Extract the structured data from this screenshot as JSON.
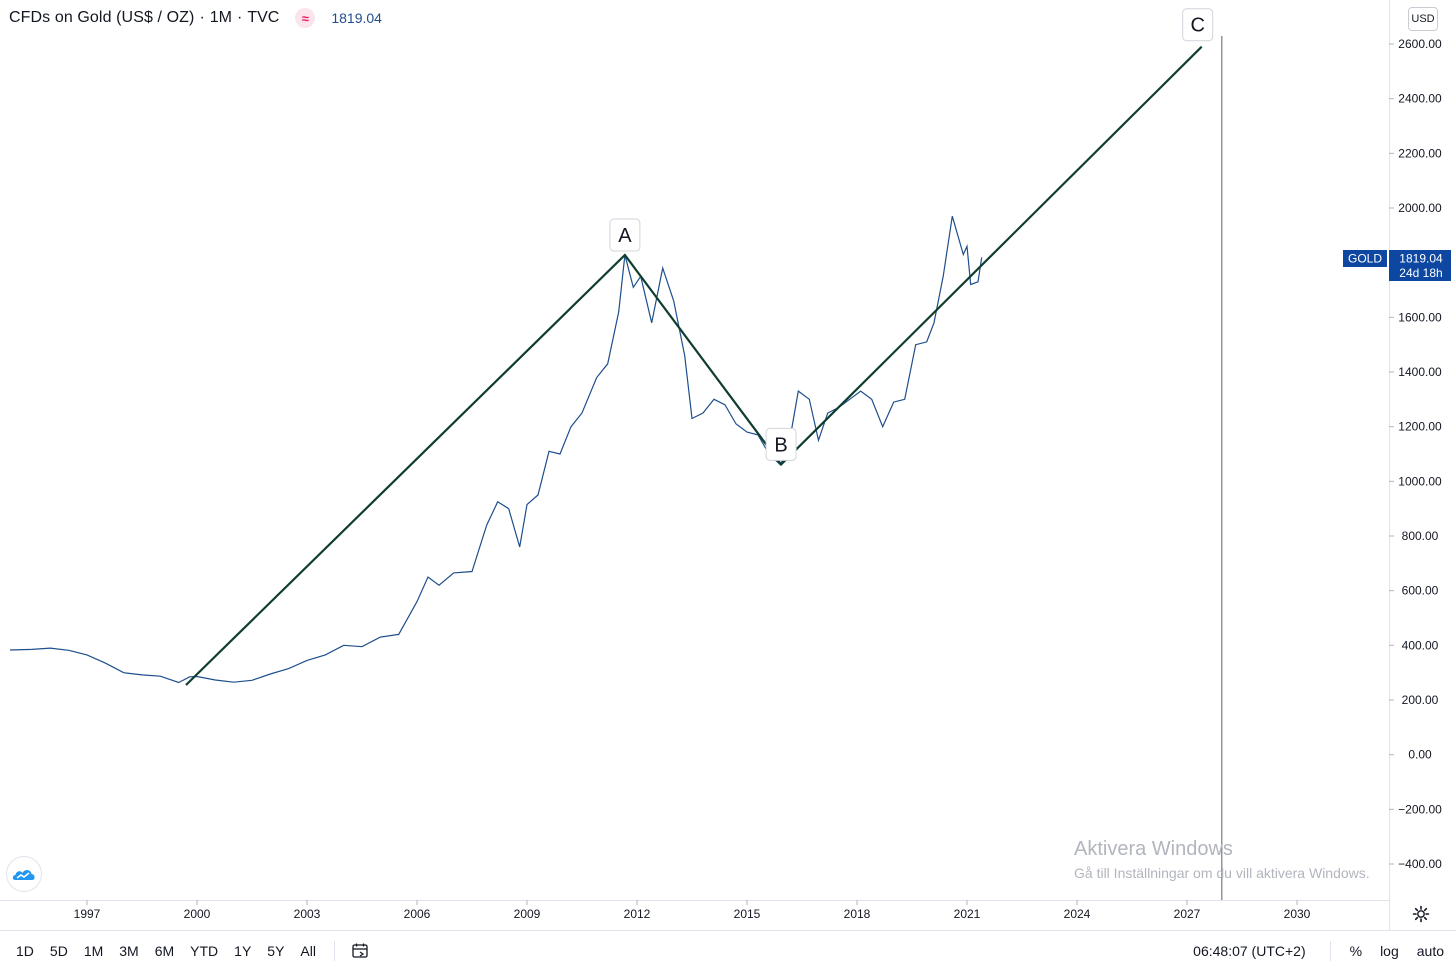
{
  "legend": {
    "symbol_title": "CFDs on Gold (US$ / OZ)",
    "interval": "1M",
    "exchange": "TVC",
    "market_icon": "wave-market-icon",
    "last_price": "1819.04"
  },
  "price_scale": {
    "currency": "USD"
  },
  "price_label": {
    "ticker": "GOLD",
    "value": "1819.04",
    "countdown": "24d 18h"
  },
  "watermark": {
    "title": "Aktivera Windows",
    "subtitle": "Gå till Inställningar om du vill aktivera Windows."
  },
  "bottom_bar": {
    "ranges": [
      "1D",
      "5D",
      "1M",
      "3M",
      "6M",
      "YTD",
      "1Y",
      "5Y",
      "All"
    ],
    "date_range_icon": "calendar-range-icon",
    "clock": "06:48:07 (UTC+2)",
    "percent_label": "%",
    "log_label": "log",
    "auto_label": "auto"
  },
  "colors": {
    "price_line": "#1f4e8c",
    "trend_line": "#0f3d2e",
    "label_bg": "#0d47a1",
    "grid": "#e0e3eb"
  },
  "chart_data": {
    "type": "line",
    "title": "CFDs on Gold (US$ / OZ)",
    "y_ticks": [
      "2600.00",
      "2400.00",
      "2200.00",
      "2000.00",
      "1600.00",
      "1400.00",
      "1200.00",
      "1000.00",
      "800.00",
      "600.00",
      "400.00",
      "200.00",
      "0.00",
      "−200.00",
      "−400.00"
    ],
    "x_ticks": [
      "1997",
      "2000",
      "2003",
      "2006",
      "2009",
      "2012",
      "2015",
      "2018",
      "2021",
      "2024",
      "2027",
      "2030"
    ],
    "ylim": [
      -450,
      2640
    ],
    "xlim": [
      1994.85,
      2032.6
    ],
    "grid": false,
    "series": [
      {
        "x": [
          1994.9,
          1995.5,
          1996.0,
          1996.5,
          1997.0,
          1997.5,
          1998.0,
          1998.5,
          1999.0,
          1999.5,
          1999.8,
          2000.0,
          2000.5,
          2001.0,
          2001.5,
          2002.0,
          2002.5,
          2003.0,
          2003.5,
          2004.0,
          2004.5,
          2005.0,
          2005.5,
          2006.0,
          2006.3,
          2006.6,
          2007.0,
          2007.5,
          2007.9,
          2008.2,
          2008.5,
          2008.8,
          2009.0,
          2009.3,
          2009.6,
          2009.9,
          2010.2,
          2010.5,
          2010.9,
          2011.2,
          2011.5,
          2011.67,
          2011.9,
          2012.1,
          2012.4,
          2012.7,
          2013.0,
          2013.3,
          2013.5,
          2013.8,
          2014.1,
          2014.4,
          2014.7,
          2015.0,
          2015.3,
          2015.6,
          2015.9,
          2016.1,
          2016.4,
          2016.7,
          2016.95,
          2017.2,
          2017.5,
          2017.8,
          2018.1,
          2018.4,
          2018.7,
          2019.0,
          2019.3,
          2019.6,
          2019.9,
          2020.1,
          2020.35,
          2020.6,
          2020.9,
          2021.0,
          2021.1,
          2021.3,
          2021.4
        ],
        "values": [
          383,
          385,
          390,
          382,
          365,
          335,
          300,
          292,
          287,
          264,
          285,
          286,
          273,
          265,
          272,
          295,
          315,
          345,
          365,
          400,
          395,
          430,
          440,
          560,
          650,
          620,
          665,
          670,
          840,
          925,
          900,
          760,
          915,
          950,
          1110,
          1100,
          1200,
          1250,
          1380,
          1430,
          1620,
          1828,
          1710,
          1750,
          1580,
          1780,
          1660,
          1460,
          1230,
          1250,
          1300,
          1280,
          1210,
          1180,
          1170,
          1100,
          1062,
          1100,
          1330,
          1300,
          1150,
          1250,
          1270,
          1300,
          1330,
          1300,
          1200,
          1290,
          1300,
          1500,
          1510,
          1580,
          1750,
          1970,
          1830,
          1860,
          1720,
          1730,
          1819.04
        ]
      }
    ],
    "annotations": [
      {
        "label": "A",
        "x": 2011.67,
        "y": 1828
      },
      {
        "label": "B",
        "x": 2015.93,
        "y": 1062
      },
      {
        "label": "C",
        "x": 2027.4,
        "y": 2590
      }
    ],
    "trend_line": {
      "x": [
        1999.7,
        2011.67,
        2015.93,
        2027.4
      ],
      "y": [
        255,
        1828,
        1062,
        2590
      ]
    },
    "vertical_marker_x": 2027.95
  }
}
